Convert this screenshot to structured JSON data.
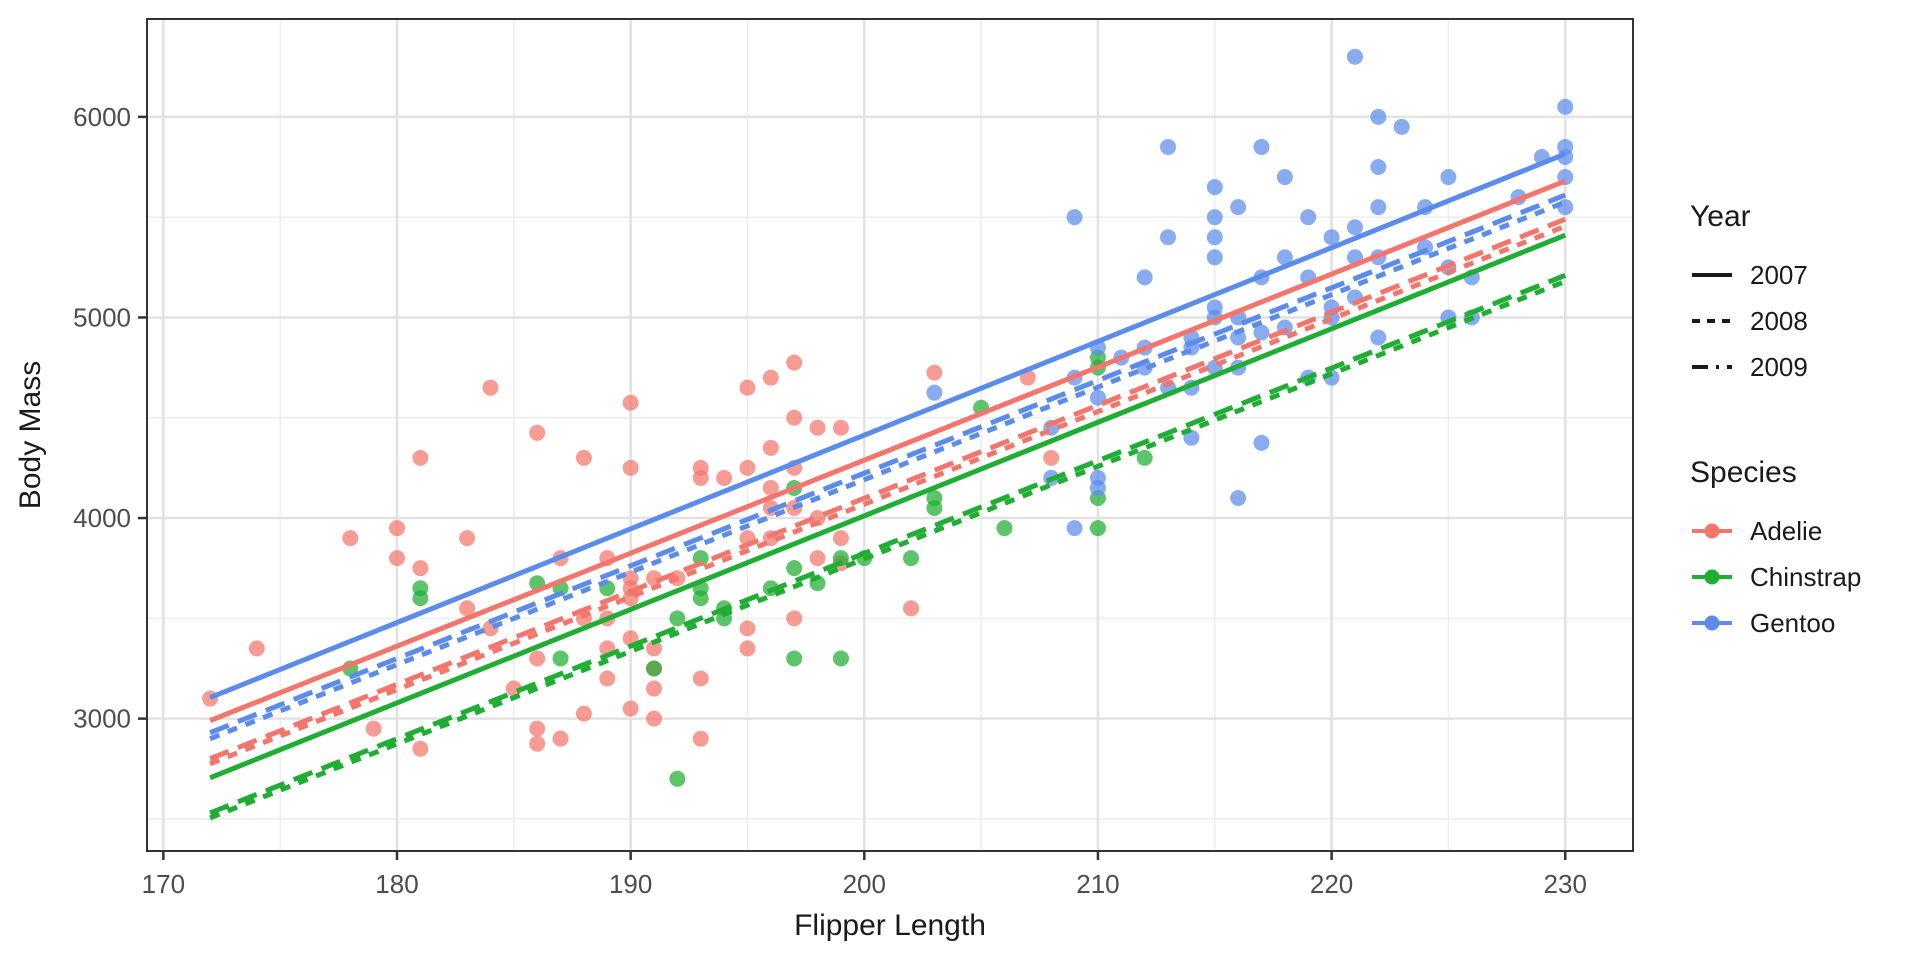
{
  "axes": {
    "x_title": "Flipper Length",
    "y_title": "Body Mass"
  },
  "legend": {
    "year": {
      "title": "Year",
      "items": [
        {
          "label": "2007",
          "linetype": "solid"
        },
        {
          "label": "2008",
          "linetype": "dashed"
        },
        {
          "label": "2009",
          "linetype": "longdash"
        }
      ],
      "key_color": "#1a1a1a"
    },
    "species": {
      "title": "Species",
      "items": [
        {
          "label": "Adelie",
          "color": "#F4756C"
        },
        {
          "label": "Chinstrap",
          "color": "#1FAD33"
        },
        {
          "label": "Gentoo",
          "color": "#5B8CEC"
        }
      ]
    }
  },
  "style": {
    "grid_major_color": "#E2E2E2",
    "grid_minor_color": "#EDEDED",
    "panel_border_color": "#333333",
    "tick_color": "#333333",
    "tick_label_color": "#4D4D4D",
    "axis_title_color": "#1a1a1a",
    "point_opacity": 0.72,
    "point_radius": 8,
    "line_width": 5
  },
  "chart_data": {
    "type": "scatter",
    "xlabel": "Flipper Length",
    "ylabel": "Body Mass",
    "xlim": [
      169.3,
      232.9
    ],
    "ylim": [
      2340,
      6488
    ],
    "x_major_ticks": [
      170,
      180,
      190,
      200,
      210,
      220,
      230
    ],
    "x_minor_ticks": [
      175,
      185,
      195,
      205,
      215,
      225
    ],
    "y_major_ticks": [
      3000,
      4000,
      5000,
      6000
    ],
    "y_minor_ticks": [
      2500,
      3500,
      4500,
      5500
    ],
    "grid": true,
    "legend_position": "right",
    "series": [
      {
        "name": "Adelie",
        "color": "#F4756C",
        "points": [
          [
            172,
            3100
          ],
          [
            174,
            3350
          ],
          [
            178,
            3900
          ],
          [
            179,
            2950
          ],
          [
            180,
            3950
          ],
          [
            180,
            3800
          ],
          [
            181,
            4300
          ],
          [
            181,
            3750
          ],
          [
            181,
            2850
          ],
          [
            183,
            3900
          ],
          [
            183,
            3550
          ],
          [
            184,
            4650
          ],
          [
            184,
            3450
          ],
          [
            185,
            3150
          ],
          [
            186,
            4425
          ],
          [
            186,
            3300
          ],
          [
            186,
            2950
          ],
          [
            186,
            2875
          ],
          [
            187,
            3800
          ],
          [
            187,
            2900
          ],
          [
            188,
            4300
          ],
          [
            188,
            3500
          ],
          [
            188,
            3025
          ],
          [
            189,
            3800
          ],
          [
            189,
            3500
          ],
          [
            189,
            3350
          ],
          [
            189,
            3200
          ],
          [
            190,
            4575
          ],
          [
            190,
            4250
          ],
          [
            190,
            3700
          ],
          [
            190,
            3650
          ],
          [
            190,
            3600
          ],
          [
            190,
            3400
          ],
          [
            190,
            3050
          ],
          [
            191,
            3700
          ],
          [
            191,
            3350
          ],
          [
            191,
            3250
          ],
          [
            191,
            3150
          ],
          [
            191,
            3000
          ],
          [
            192,
            3700
          ],
          [
            193,
            4250
          ],
          [
            193,
            4200
          ],
          [
            193,
            3200
          ],
          [
            193,
            2900
          ],
          [
            194,
            4200
          ],
          [
            195,
            4650
          ],
          [
            195,
            4250
          ],
          [
            195,
            3900
          ],
          [
            195,
            3450
          ],
          [
            195,
            3350
          ],
          [
            196,
            4700
          ],
          [
            196,
            4350
          ],
          [
            196,
            4150
          ],
          [
            196,
            4050
          ],
          [
            196,
            3900
          ],
          [
            197,
            4775
          ],
          [
            197,
            4500
          ],
          [
            197,
            4250
          ],
          [
            197,
            4050
          ],
          [
            197,
            3500
          ],
          [
            198,
            4450
          ],
          [
            198,
            4000
          ],
          [
            198,
            3800
          ],
          [
            199,
            4450
          ],
          [
            199,
            3900
          ],
          [
            199,
            3775
          ],
          [
            202,
            3550
          ],
          [
            203,
            4725
          ],
          [
            207,
            4700
          ],
          [
            208,
            4300
          ]
        ]
      },
      {
        "name": "Chinstrap",
        "color": "#1FAD33",
        "points": [
          [
            178,
            3250
          ],
          [
            181,
            3650
          ],
          [
            181,
            3600
          ],
          [
            186,
            3675
          ],
          [
            187,
            3650
          ],
          [
            187,
            3300
          ],
          [
            189,
            3650
          ],
          [
            191,
            3250
          ],
          [
            192,
            3500
          ],
          [
            192,
            2700
          ],
          [
            193,
            3800
          ],
          [
            193,
            3650
          ],
          [
            193,
            3600
          ],
          [
            194,
            3550
          ],
          [
            194,
            3500
          ],
          [
            196,
            3650
          ],
          [
            197,
            4150
          ],
          [
            197,
            3750
          ],
          [
            197,
            3300
          ],
          [
            198,
            3675
          ],
          [
            199,
            3800
          ],
          [
            199,
            3300
          ],
          [
            200,
            3800
          ],
          [
            202,
            3800
          ],
          [
            203,
            4100
          ],
          [
            203,
            4050
          ],
          [
            205,
            4550
          ],
          [
            206,
            3950
          ],
          [
            210,
            4800
          ],
          [
            210,
            4750
          ],
          [
            210,
            4100
          ],
          [
            210,
            3950
          ],
          [
            212,
            4300
          ]
        ]
      },
      {
        "name": "Gentoo",
        "color": "#5B8CEC",
        "points": [
          [
            203,
            4625
          ],
          [
            208,
            4450
          ],
          [
            208,
            4200
          ],
          [
            209,
            4700
          ],
          [
            209,
            5500
          ],
          [
            209,
            3950
          ],
          [
            210,
            4850
          ],
          [
            210,
            4600
          ],
          [
            210,
            4200
          ],
          [
            210,
            4150
          ],
          [
            211,
            4800
          ],
          [
            212,
            5200
          ],
          [
            212,
            4850
          ],
          [
            212,
            4750
          ],
          [
            213,
            5850
          ],
          [
            213,
            5400
          ],
          [
            213,
            4650
          ],
          [
            214,
            4900
          ],
          [
            214,
            4850
          ],
          [
            214,
            4650
          ],
          [
            214,
            4400
          ],
          [
            215,
            5650
          ],
          [
            215,
            5500
          ],
          [
            215,
            5400
          ],
          [
            215,
            5300
          ],
          [
            215,
            5050
          ],
          [
            215,
            5000
          ],
          [
            215,
            4750
          ],
          [
            216,
            5550
          ],
          [
            216,
            5000
          ],
          [
            216,
            4900
          ],
          [
            216,
            4750
          ],
          [
            216,
            4100
          ],
          [
            217,
            5850
          ],
          [
            217,
            5200
          ],
          [
            217,
            4925
          ],
          [
            217,
            4375
          ],
          [
            218,
            5700
          ],
          [
            218,
            5300
          ],
          [
            218,
            4950
          ],
          [
            219,
            5500
          ],
          [
            219,
            5200
          ],
          [
            219,
            4700
          ],
          [
            220,
            5400
          ],
          [
            220,
            5050
          ],
          [
            220,
            5000
          ],
          [
            220,
            4700
          ],
          [
            221,
            6300
          ],
          [
            221,
            5450
          ],
          [
            221,
            5300
          ],
          [
            221,
            5100
          ],
          [
            222,
            6000
          ],
          [
            222,
            5750
          ],
          [
            222,
            5550
          ],
          [
            222,
            5300
          ],
          [
            222,
            4900
          ],
          [
            223,
            5950
          ],
          [
            224,
            5550
          ],
          [
            224,
            5350
          ],
          [
            225,
            5700
          ],
          [
            225,
            5250
          ],
          [
            225,
            5000
          ],
          [
            226,
            5200
          ],
          [
            226,
            5000
          ],
          [
            228,
            5600
          ],
          [
            229,
            5800
          ],
          [
            230,
            6050
          ],
          [
            230,
            5850
          ],
          [
            230,
            5800
          ],
          [
            230,
            5700
          ],
          [
            230,
            5550
          ]
        ]
      }
    ],
    "regression_lines": [
      {
        "species": "Gentoo",
        "year": "2007",
        "linetype": "solid",
        "x1": 172,
        "y1": 3105,
        "x2": 230,
        "y2": 5815
      },
      {
        "species": "Gentoo",
        "year": "2009",
        "linetype": "longdash",
        "x1": 172,
        "y1": 2930,
        "x2": 230,
        "y2": 5610
      },
      {
        "species": "Gentoo",
        "year": "2008",
        "linetype": "dashed",
        "x1": 172,
        "y1": 2900,
        "x2": 230,
        "y2": 5575
      },
      {
        "species": "Adelie",
        "year": "2007",
        "linetype": "solid",
        "x1": 172,
        "y1": 2990,
        "x2": 230,
        "y2": 5680
      },
      {
        "species": "Adelie",
        "year": "2009",
        "linetype": "longdash",
        "x1": 172,
        "y1": 2800,
        "x2": 230,
        "y2": 5490
      },
      {
        "species": "Adelie",
        "year": "2008",
        "linetype": "dashed",
        "x1": 172,
        "y1": 2775,
        "x2": 230,
        "y2": 5455
      },
      {
        "species": "Chinstrap",
        "year": "2007",
        "linetype": "solid",
        "x1": 172,
        "y1": 2705,
        "x2": 230,
        "y2": 5410
      },
      {
        "species": "Chinstrap",
        "year": "2009",
        "linetype": "longdash",
        "x1": 172,
        "y1": 2530,
        "x2": 230,
        "y2": 5210
      },
      {
        "species": "Chinstrap",
        "year": "2008",
        "linetype": "dashed",
        "x1": 172,
        "y1": 2505,
        "x2": 230,
        "y2": 5180
      }
    ]
  }
}
